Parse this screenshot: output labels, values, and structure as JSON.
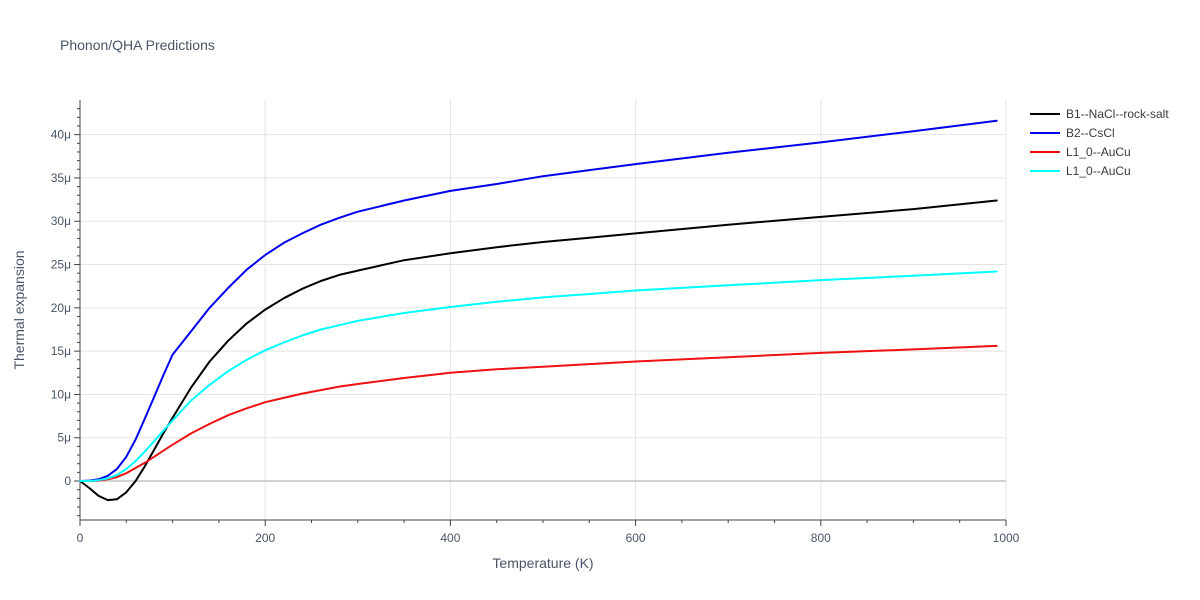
{
  "chart_data": {
    "type": "line",
    "title": "Phonon/QHA Predictions",
    "xlabel": "Temperature (K)",
    "ylabel": "Thermal expansion",
    "xlim": [
      0,
      1000
    ],
    "ylim": [
      -4.5e-06,
      4.4e-05
    ],
    "x_ticks": [
      0,
      200,
      400,
      600,
      800,
      1000
    ],
    "y_ticks": [
      0,
      5e-06,
      1e-05,
      1.5e-05,
      2e-05,
      2.5e-05,
      3e-05,
      3.5e-05,
      4e-05
    ],
    "y_tick_labels": [
      "0",
      "5μ",
      "10μ",
      "15μ",
      "20μ",
      "25μ",
      "30μ",
      "35μ",
      "40μ"
    ],
    "grid": true,
    "legend_position": "top-right",
    "series": [
      {
        "name": "B1--NaCl--rock-salt",
        "color": "#000000",
        "x": [
          0,
          10,
          20,
          30,
          40,
          50,
          60,
          70,
          80,
          90,
          100,
          120,
          140,
          160,
          180,
          200,
          220,
          240,
          260,
          280,
          300,
          350,
          400,
          450,
          500,
          550,
          600,
          700,
          800,
          900,
          990
        ],
        "y": [
          0,
          -8e-07,
          -1.7e-06,
          -2.2e-06,
          -2.1e-06,
          -1.3e-06,
          0,
          1.7e-06,
          3.6e-06,
          5.5e-06,
          7.3e-06,
          1.08e-05,
          1.38e-05,
          1.62e-05,
          1.82e-05,
          1.98e-05,
          2.11e-05,
          2.22e-05,
          2.31e-05,
          2.38e-05,
          2.43e-05,
          2.55e-05,
          2.63e-05,
          2.7e-05,
          2.76e-05,
          2.81e-05,
          2.86e-05,
          2.96e-05,
          3.05e-05,
          3.14e-05,
          3.24e-05
        ]
      },
      {
        "name": "B2--CsCl",
        "color": "#0000ee",
        "x": [
          0,
          10,
          20,
          30,
          40,
          50,
          60,
          70,
          80,
          90,
          100,
          120,
          140,
          160,
          180,
          200,
          220,
          240,
          260,
          280,
          300,
          350,
          400,
          450,
          500,
          550,
          600,
          700,
          800,
          900,
          990
        ],
        "y": [
          0,
          5e-08,
          2e-07,
          6e-07,
          1.4e-06,
          2.8e-06,
          4.8e-06,
          7.2e-06,
          9.7e-06,
          1.22e-05,
          1.46e-05,
          1.73e-05,
          2e-05,
          2.23e-05,
          2.44e-05,
          2.61e-05,
          2.75e-05,
          2.86e-05,
          2.96e-05,
          3.04e-05,
          3.11e-05,
          3.24e-05,
          3.35e-05,
          3.43e-05,
          3.52e-05,
          3.59e-05,
          3.66e-05,
          3.79e-05,
          3.91e-05,
          4.04e-05,
          4.16e-05
        ]
      },
      {
        "name": "L1_0--AuCu",
        "color": "#ee1111",
        "x": [
          0,
          10,
          20,
          30,
          40,
          50,
          60,
          70,
          80,
          90,
          100,
          120,
          140,
          160,
          180,
          200,
          220,
          240,
          260,
          280,
          300,
          350,
          400,
          450,
          500,
          550,
          600,
          700,
          800,
          900,
          990
        ],
        "y": [
          0,
          0.0,
          5e-08,
          2e-07,
          4.5e-07,
          9e-07,
          1.5e-06,
          2.1e-06,
          2.8e-06,
          3.5e-06,
          4.2e-06,
          5.5e-06,
          6.6e-06,
          7.6e-06,
          8.4e-06,
          9.1e-06,
          9.6e-06,
          1.01e-05,
          1.05e-05,
          1.09e-05,
          1.12e-05,
          1.19e-05,
          1.25e-05,
          1.29e-05,
          1.32e-05,
          1.35e-05,
          1.38e-05,
          1.43e-05,
          1.48e-05,
          1.52e-05,
          1.56e-05
        ]
      },
      {
        "name": "L1_0--AuCu",
        "color": "#00ffff",
        "x": [
          0,
          10,
          20,
          30,
          40,
          50,
          60,
          70,
          80,
          90,
          100,
          120,
          140,
          160,
          180,
          200,
          220,
          240,
          260,
          280,
          300,
          350,
          400,
          450,
          500,
          550,
          600,
          700,
          800,
          900,
          990
        ],
        "y": [
          0,
          0.0,
          1e-07,
          3e-07,
          7e-07,
          1.4e-06,
          2.3e-06,
          3.4e-06,
          4.6e-06,
          5.8e-06,
          7e-06,
          9.3e-06,
          1.11e-05,
          1.27e-05,
          1.4e-05,
          1.51e-05,
          1.6e-05,
          1.68e-05,
          1.75e-05,
          1.8e-05,
          1.85e-05,
          1.94e-05,
          2.01e-05,
          2.07e-05,
          2.12e-05,
          2.16e-05,
          2.2e-05,
          2.26e-05,
          2.32e-05,
          2.37e-05,
          2.42e-05
        ]
      }
    ]
  }
}
